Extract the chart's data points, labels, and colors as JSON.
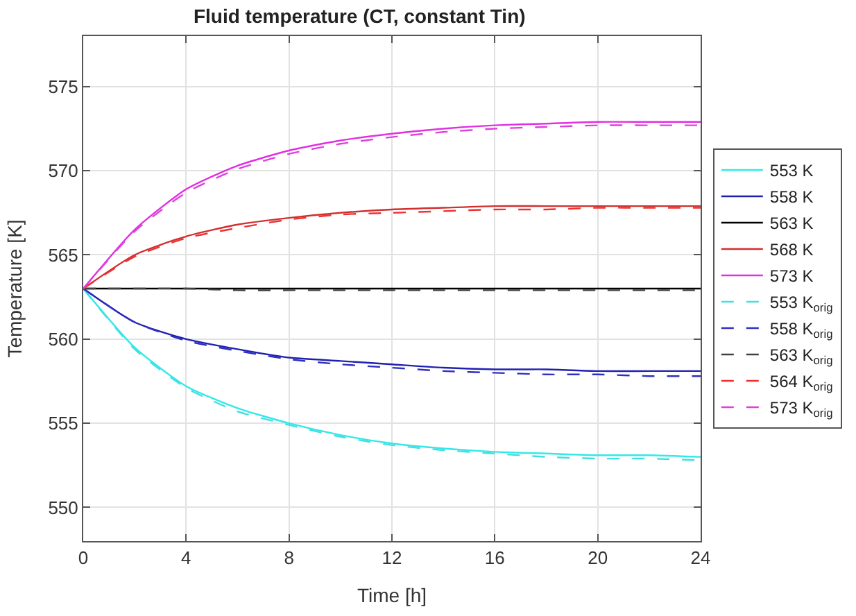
{
  "chart_data": {
    "type": "line",
    "title": "Fluid temperature (CT, constant Tin)",
    "xlabel": "Time [h]",
    "ylabel": "Temperature [K]",
    "x": [
      0,
      2,
      4,
      6,
      8,
      10,
      12,
      14,
      16,
      18,
      20,
      22,
      24
    ],
    "series": [
      {
        "name": "553 K",
        "color": "#33e8e8",
        "line_style": "solid",
        "values": [
          563,
          559.5,
          557.2,
          555.9,
          555.0,
          554.3,
          553.8,
          553.5,
          553.3,
          553.2,
          553.1,
          553.1,
          553.0
        ]
      },
      {
        "name": "558 K",
        "color": "#2020b0",
        "line_style": "solid",
        "values": [
          563,
          561.0,
          560.0,
          559.4,
          558.9,
          558.7,
          558.5,
          558.3,
          558.2,
          558.2,
          558.1,
          558.1,
          558.1
        ]
      },
      {
        "name": "563 K",
        "color": "#000000",
        "line_style": "solid",
        "values": [
          563,
          563,
          563,
          563,
          563,
          563,
          563,
          563,
          563,
          563,
          563,
          563,
          563
        ]
      },
      {
        "name": "568 K",
        "color": "#d03030",
        "line_style": "solid",
        "values": [
          563,
          565.0,
          566.1,
          566.8,
          567.2,
          567.5,
          567.7,
          567.8,
          567.9,
          567.9,
          567.9,
          567.9,
          567.9
        ]
      },
      {
        "name": "573 K",
        "color": "#e030e0",
        "line_style": "solid",
        "values": [
          563,
          566.5,
          568.9,
          570.3,
          571.2,
          571.8,
          572.2,
          572.5,
          572.7,
          572.8,
          572.9,
          572.9,
          572.9
        ]
      },
      {
        "name": "553 K$_{orig}$",
        "color": "#40e0e0",
        "line_style": "dashed",
        "values": [
          563,
          559.4,
          557.1,
          555.7,
          554.9,
          554.2,
          553.7,
          553.4,
          553.2,
          553.0,
          552.9,
          552.9,
          552.8
        ]
      },
      {
        "name": "558 K$_{orig}$",
        "color": "#3030c0",
        "line_style": "dashed",
        "values": [
          563,
          561.0,
          559.9,
          559.3,
          558.8,
          558.5,
          558.3,
          558.1,
          558.0,
          557.9,
          557.9,
          557.8,
          557.8
        ]
      },
      {
        "name": "563 K$_{orig}$",
        "color": "#404040",
        "line_style": "dashed",
        "values": [
          563,
          563,
          563.0,
          562.9,
          562.9,
          562.9,
          562.9,
          562.9,
          562.9,
          562.9,
          562.9,
          562.9,
          562.9
        ]
      },
      {
        "name": "564 K$_{orig}$",
        "color": "#f03030",
        "line_style": "dashed",
        "values": [
          563,
          564.9,
          566.0,
          566.6,
          567.1,
          567.4,
          567.5,
          567.6,
          567.7,
          567.7,
          567.8,
          567.8,
          567.8
        ]
      },
      {
        "name": "573 K$_{orig}$",
        "color": "#e040e0",
        "line_style": "dashed",
        "values": [
          563,
          566.4,
          568.7,
          570.1,
          571.0,
          571.6,
          572.0,
          572.3,
          572.5,
          572.6,
          572.7,
          572.7,
          572.7
        ]
      }
    ],
    "xlim": [
      0,
      24
    ],
    "xticks": [
      0,
      4,
      8,
      12,
      16,
      20,
      24
    ],
    "ylim": [
      548,
      578
    ],
    "yticks": [
      550,
      555,
      560,
      565,
      570,
      575
    ],
    "grid": true,
    "legend": "right",
    "marker": "none"
  }
}
